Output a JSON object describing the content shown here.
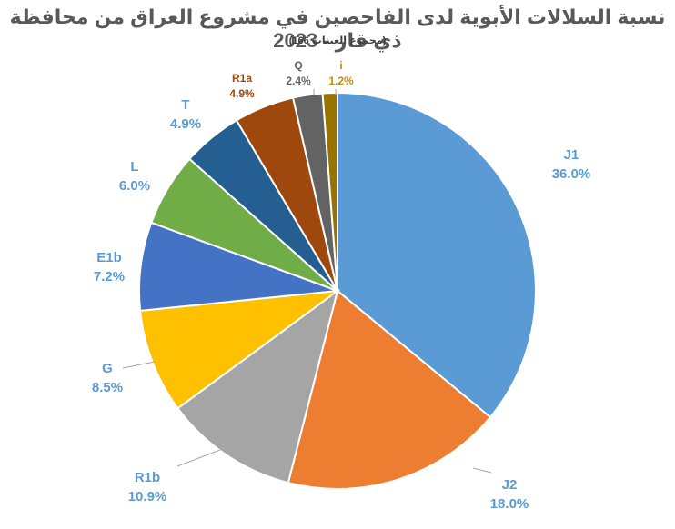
{
  "chart_data": {
    "type": "pie",
    "title": "نسبة السلالات الأبوية لدى الفاحصين في مشروع العراق من محافظة ذي قار - 2023",
    "subtitle": "(مجموع العينات 166)",
    "slices": [
      {
        "name": "J1",
        "value": 36.0,
        "label": "36.0%",
        "color": "#5B9BD5",
        "label_color": "#5B9BD5"
      },
      {
        "name": "J2",
        "value": 18.0,
        "label": "18.0%",
        "color": "#ED7D31",
        "label_color": "#5B9BD5"
      },
      {
        "name": "R1b",
        "value": 10.9,
        "label": "10.9%",
        "color": "#A5A5A5",
        "label_color": "#5B9BD5"
      },
      {
        "name": "G",
        "value": 8.5,
        "label": "8.5%",
        "color": "#FFC000",
        "label_color": "#5B9BD5"
      },
      {
        "name": "E1b",
        "value": 7.2,
        "label": "7.2%",
        "color": "#4472C4",
        "label_color": "#5B9BD5"
      },
      {
        "name": "L",
        "value": 6.0,
        "label": "6.0%",
        "color": "#70AD47",
        "label_color": "#5B9BD5"
      },
      {
        "name": "T",
        "value": 4.9,
        "label": "4.9%",
        "color": "#255E91",
        "label_color": "#5B9BD5"
      },
      {
        "name": "R1a",
        "value": 4.9,
        "label": "4.9%",
        "color": "#9E480E",
        "label_color": "#9E480E"
      },
      {
        "name": "Q",
        "value": 2.4,
        "label": "2.4%",
        "color": "#636363",
        "label_color": "#636363"
      },
      {
        "name": "i",
        "value": 1.2,
        "label": "1.2%",
        "color": "#997300",
        "label_color": "#BF9000"
      }
    ],
    "start_angle": "12 o'clock",
    "direction": "clockwise",
    "legend": "none"
  }
}
